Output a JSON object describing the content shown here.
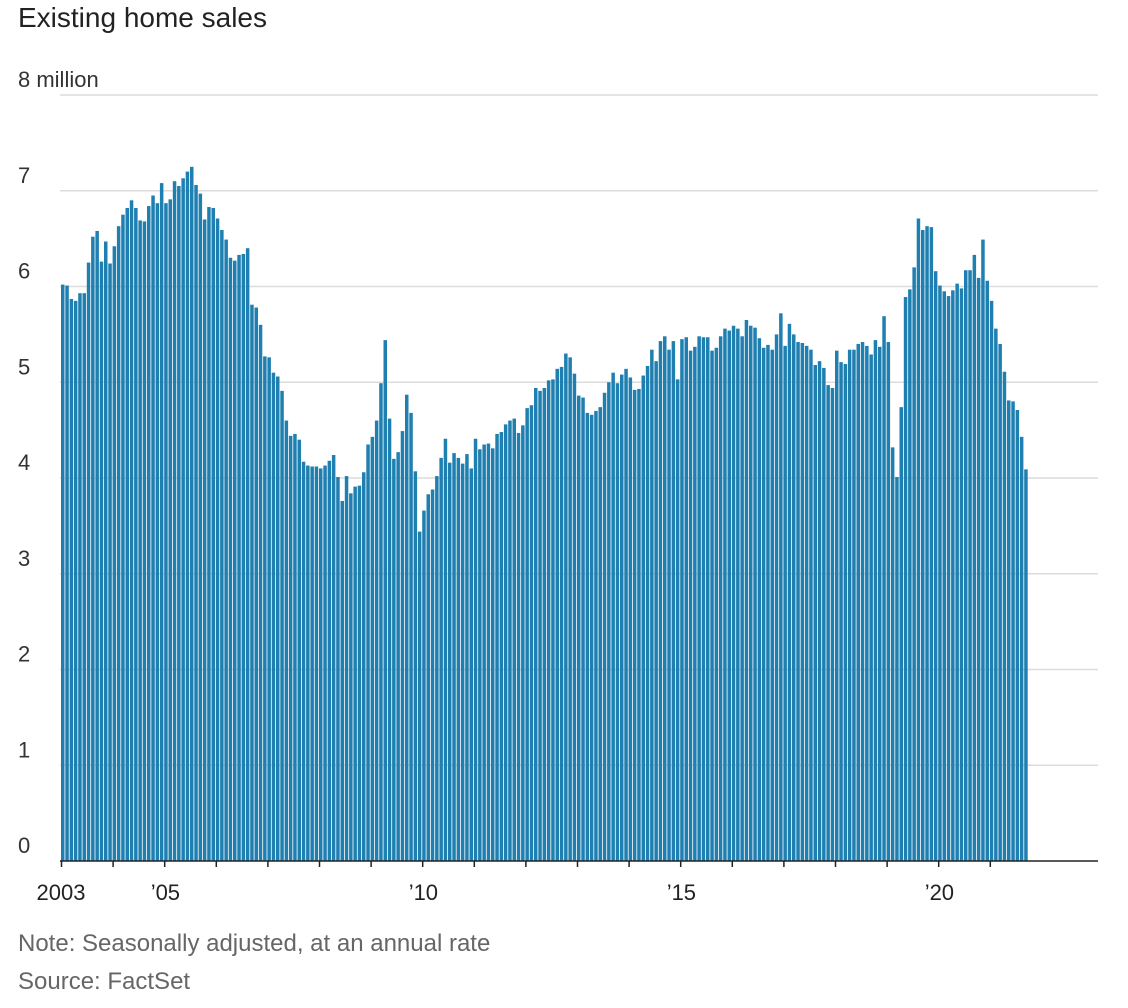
{
  "title": "Existing home sales",
  "note": "Note: Seasonally adjusted, at an annual rate",
  "source": "Source: FactSet",
  "colors": {
    "bar": "#1f7fb0",
    "grid": "#dcdcdc",
    "axis": "#222222"
  },
  "chart_data": {
    "type": "bar",
    "title": "Existing home sales",
    "ylabel": "",
    "xlabel": "",
    "ylim": [
      0,
      8
    ],
    "yticks": [
      {
        "value": 0,
        "label": "0"
      },
      {
        "value": 1,
        "label": "1"
      },
      {
        "value": 2,
        "label": "2"
      },
      {
        "value": 3,
        "label": "3"
      },
      {
        "value": 4,
        "label": "4"
      },
      {
        "value": 5,
        "label": "5"
      },
      {
        "value": 6,
        "label": "6"
      },
      {
        "value": 7,
        "label": "7"
      },
      {
        "value": 8,
        "label": "8 million"
      }
    ],
    "xticks": [
      {
        "year": 2003,
        "label": "2003"
      },
      {
        "year": 2005,
        "label": "’05"
      },
      {
        "year": 2010,
        "label": "’10"
      },
      {
        "year": 2015,
        "label": "’15"
      },
      {
        "year": 2020,
        "label": "’20"
      }
    ],
    "x_start": "2003-01",
    "frequency": "monthly",
    "grid": true,
    "series": [
      {
        "values": [
          6.02,
          6.01,
          5.87,
          5.85,
          5.93,
          5.93,
          6.25,
          6.52,
          6.58,
          6.26,
          6.47,
          6.24,
          6.42,
          6.63,
          6.75,
          6.82,
          6.9,
          6.82,
          6.69,
          6.68,
          6.84,
          6.95,
          6.87,
          7.08,
          6.87,
          6.91,
          7.1,
          7.05,
          7.13,
          7.2,
          7.25,
          7.06,
          6.97,
          6.7,
          6.83,
          6.82,
          6.71,
          6.59,
          6.49,
          6.3,
          6.27,
          6.33,
          6.34,
          6.4,
          5.81,
          5.78,
          5.6,
          5.27,
          5.26,
          5.1,
          5.06,
          4.91,
          4.6,
          4.44,
          4.46,
          4.4,
          4.17,
          4.13,
          4.12,
          4.12,
          4.1,
          4.13,
          4.18,
          4.24,
          4.01,
          3.76,
          4.02,
          3.84,
          3.91,
          3.92,
          4.06,
          4.35,
          4.43,
          4.6,
          4.99,
          5.44,
          4.62,
          4.2,
          4.27,
          4.49,
          4.87,
          4.68,
          4.07,
          3.44,
          3.66,
          3.83,
          3.88,
          4.02,
          4.21,
          4.41,
          4.16,
          4.26,
          4.21,
          4.15,
          4.25,
          4.1,
          4.41,
          4.3,
          4.35,
          4.36,
          4.31,
          4.46,
          4.48,
          4.56,
          4.6,
          4.62,
          4.47,
          4.55,
          4.73,
          4.76,
          4.94,
          4.91,
          4.94,
          5.02,
          5.03,
          5.14,
          5.16,
          5.3,
          5.26,
          5.09,
          4.86,
          4.84,
          4.68,
          4.66,
          4.7,
          4.74,
          4.89,
          5.0,
          5.1,
          4.99,
          5.08,
          5.14,
          5.05,
          4.92,
          4.93,
          5.07,
          5.17,
          5.34,
          5.22,
          5.43,
          5.48,
          5.34,
          5.43,
          5.03,
          5.45,
          5.47,
          5.33,
          5.37,
          5.48,
          5.47,
          5.47,
          5.33,
          5.36,
          5.48,
          5.56,
          5.54,
          5.59,
          5.56,
          5.48,
          5.65,
          5.59,
          5.57,
          5.46,
          5.36,
          5.39,
          5.34,
          5.5,
          5.72,
          5.38,
          5.61,
          5.5,
          5.42,
          5.41,
          5.38,
          5.34,
          5.18,
          5.22,
          5.15,
          4.97,
          4.94,
          5.33,
          5.21,
          5.19,
          5.34,
          5.34,
          5.4,
          5.42,
          5.38,
          5.29,
          5.44,
          5.37,
          5.69,
          5.42,
          4.32,
          4.01,
          4.74,
          5.89,
          5.97,
          6.2,
          6.71,
          6.59,
          6.63,
          6.62,
          6.16,
          6.01,
          5.95,
          5.9,
          5.96,
          6.03,
          5.98,
          6.17,
          6.17,
          6.33,
          6.09,
          6.49,
          6.06,
          5.85,
          5.56,
          5.4,
          5.11,
          4.81,
          4.8,
          4.71,
          4.43,
          4.09
        ]
      }
    ]
  }
}
